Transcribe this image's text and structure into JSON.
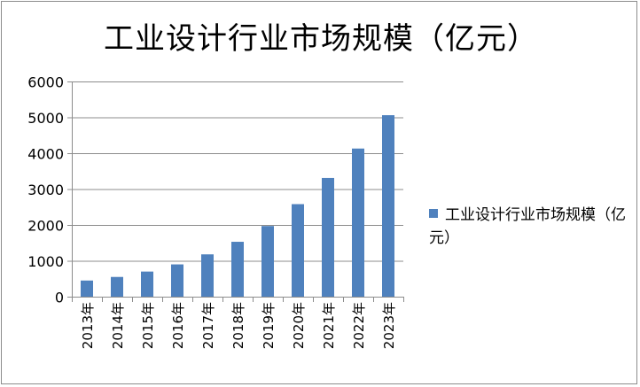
{
  "chart_data": {
    "type": "bar",
    "title": "工业设计行业市场规模（亿元）",
    "categories": [
      "2013年",
      "2014年",
      "2015年",
      "2016年",
      "2017年",
      "2018年",
      "2019年",
      "2020年",
      "2021年",
      "2022年",
      "2023年"
    ],
    "series": [
      {
        "name": "工业设计行业市场规模（亿元）",
        "values": [
          450,
          550,
          700,
          900,
          1180,
          1530,
          1970,
          2580,
          3310,
          4130,
          5060
        ],
        "color": "#4f81bd"
      }
    ],
    "ylim": [
      0,
      6000
    ],
    "yticks": [
      0,
      1000,
      2000,
      3000,
      4000,
      5000,
      6000
    ],
    "grid": true,
    "legend_position": "right"
  }
}
